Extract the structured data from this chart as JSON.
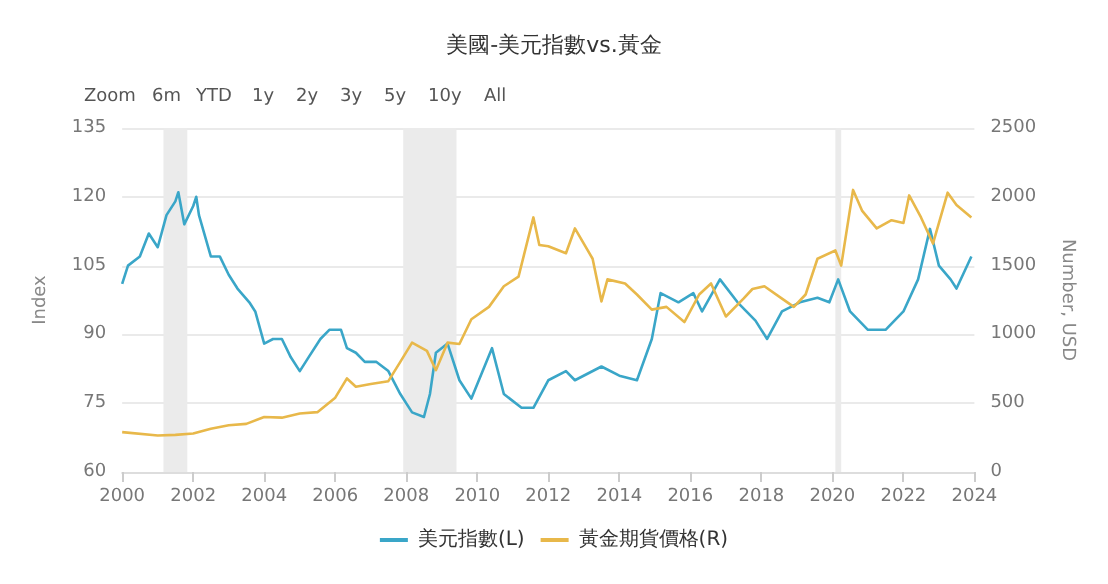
{
  "chart_data": {
    "type": "line",
    "title": "美國-美元指數vs.黃金",
    "annotations": [
      "Zoom",
      "6m",
      "YTD",
      "1y",
      "2y",
      "3y",
      "5y",
      "10y",
      "All"
    ],
    "ylabel": "Index",
    "y2label": "Number, USD",
    "xlim": [
      "2000-01",
      "2024-01"
    ],
    "xticks": [
      "2000",
      "2002",
      "2004",
      "2006",
      "2008",
      "2010",
      "2012",
      "2014",
      "2016",
      "2018",
      "2020",
      "2022",
      "2024"
    ],
    "ylim": [
      60,
      135
    ],
    "yticks": [
      60,
      75,
      90,
      105,
      120,
      135
    ],
    "y2lim": [
      0,
      2500
    ],
    "y2ticks": [
      0,
      500,
      1000,
      1500,
      2000,
      2500
    ],
    "grid": "y",
    "legend": "bottom",
    "bands": [
      {
        "axis": "x",
        "from": "2001-03",
        "to": "2001-11",
        "color": "#ebebeb"
      },
      {
        "axis": "x",
        "from": "2007-12",
        "to": "2009-06",
        "color": "#ebebeb"
      },
      {
        "axis": "x",
        "from": "2020-02",
        "to": "2020-04",
        "color": "#ebebeb"
      }
    ],
    "series": [
      {
        "name": "美元指數(L)",
        "color": "#3aa6c8",
        "x": [
          "2000-01",
          "2000-03",
          "2000-07",
          "2000-10",
          "2001-01",
          "2001-04",
          "2001-07",
          "2001-08",
          "2001-10",
          "2002-01",
          "2002-02",
          "2002-03",
          "2002-07",
          "2002-10",
          "2003-01",
          "2003-04",
          "2003-08",
          "2003-10",
          "2004-01",
          "2004-04",
          "2004-07",
          "2004-10",
          "2005-01",
          "2005-04",
          "2005-08",
          "2005-11",
          "2006-03",
          "2006-05",
          "2006-08",
          "2006-11",
          "2007-03",
          "2007-07",
          "2007-11",
          "2008-03",
          "2008-07",
          "2008-09",
          "2008-11",
          "2009-03",
          "2009-07",
          "2009-11",
          "2010-06",
          "2010-10",
          "2011-04",
          "2011-08",
          "2012-01",
          "2012-07",
          "2012-10",
          "2013-07",
          "2014-01",
          "2014-07",
          "2014-12",
          "2015-03",
          "2015-09",
          "2016-02",
          "2016-05",
          "2016-11",
          "2017-05",
          "2017-11",
          "2018-03",
          "2018-08",
          "2019-02",
          "2019-08",
          "2019-12",
          "2020-03",
          "2020-07",
          "2021-01",
          "2021-07",
          "2022-01",
          "2022-06",
          "2022-10",
          "2023-01",
          "2023-05",
          "2023-07",
          "2023-12"
        ],
        "values": [
          101,
          105,
          107,
          112,
          109,
          116,
          119,
          121,
          114,
          118,
          120,
          116,
          107,
          107,
          103,
          100,
          97,
          95,
          88,
          89,
          89,
          85,
          82,
          85,
          89,
          91,
          91,
          87,
          86,
          84,
          84,
          82,
          77,
          73,
          72,
          77,
          86,
          88,
          80,
          76,
          87,
          77,
          74,
          74,
          80,
          82,
          80,
          83,
          81,
          80,
          89,
          99,
          97,
          99,
          95,
          102,
          97,
          93,
          89,
          95,
          97,
          98,
          97,
          102,
          95,
          91,
          91,
          95,
          102,
          113,
          105,
          102,
          100,
          107
        ]
      },
      {
        "name": "黃金期貨價格(R)",
        "color": "#e8b84a",
        "axis": "y2",
        "x": [
          "2000-01",
          "2001-01",
          "2001-07",
          "2002-01",
          "2002-07",
          "2003-01",
          "2003-07",
          "2004-01",
          "2004-07",
          "2005-01",
          "2005-07",
          "2006-01",
          "2006-05",
          "2006-08",
          "2007-01",
          "2007-07",
          "2007-11",
          "2008-03",
          "2008-08",
          "2008-11",
          "2009-03",
          "2009-07",
          "2009-11",
          "2010-05",
          "2010-10",
          "2011-03",
          "2011-08",
          "2011-10",
          "2012-01",
          "2012-07",
          "2012-10",
          "2013-04",
          "2013-07",
          "2013-09",
          "2014-03",
          "2014-07",
          "2014-12",
          "2015-05",
          "2015-11",
          "2016-04",
          "2016-08",
          "2017-01",
          "2017-07",
          "2017-10",
          "2018-02",
          "2018-08",
          "2018-12",
          "2019-04",
          "2019-08",
          "2020-02",
          "2020-04",
          "2020-08",
          "2020-11",
          "2021-04",
          "2021-09",
          "2022-01",
          "2022-03",
          "2022-07",
          "2022-11",
          "2023-04",
          "2023-07",
          "2023-12"
        ],
        "values": [
          290,
          265,
          270,
          280,
          315,
          340,
          350,
          400,
          395,
          425,
          435,
          540,
          680,
          620,
          640,
          660,
          800,
          940,
          880,
          740,
          940,
          930,
          1110,
          1200,
          1350,
          1420,
          1850,
          1650,
          1640,
          1590,
          1770,
          1550,
          1240,
          1400,
          1370,
          1290,
          1180,
          1200,
          1090,
          1290,
          1370,
          1130,
          1260,
          1330,
          1350,
          1260,
          1200,
          1290,
          1550,
          1610,
          1500,
          2050,
          1900,
          1770,
          1830,
          1810,
          2010,
          1850,
          1660,
          2030,
          1940,
          1850
        ]
      }
    ]
  }
}
